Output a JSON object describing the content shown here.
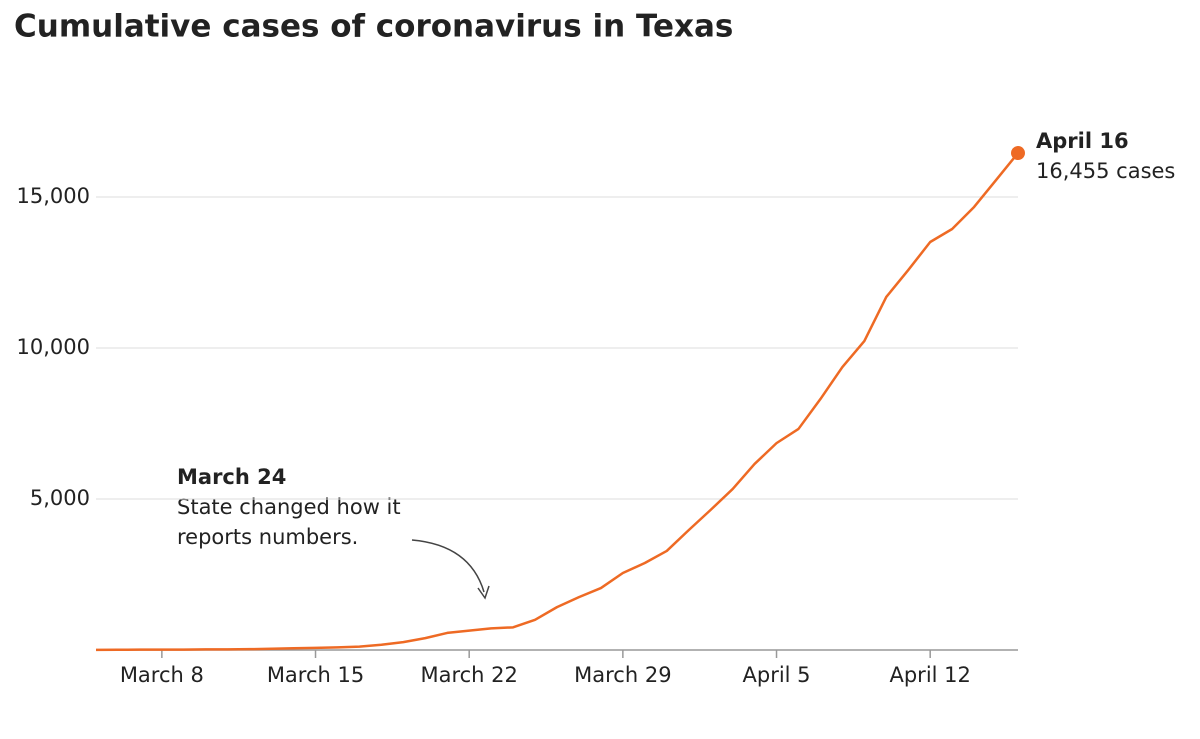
{
  "chart_data": {
    "type": "line",
    "title": "Cumulative cases of coronavirus in Texas",
    "x": [
      5,
      6,
      7,
      8,
      9,
      10,
      11,
      12,
      13,
      14,
      15,
      16,
      17,
      18,
      19,
      20,
      21,
      22,
      23,
      24,
      25,
      26,
      27,
      28,
      29,
      30,
      31,
      32,
      33,
      34,
      35,
      36,
      37,
      38,
      39,
      40,
      41,
      42,
      43,
      44,
      45,
      46,
      47
    ],
    "series": [
      {
        "name": "Cumulative cases",
        "color": "#ee6a24",
        "values": [
          5,
          8,
          11,
          13,
          13,
          20,
          21,
          27,
          43,
          57,
          72,
          85,
          110,
          173,
          260,
          394,
          566,
          643,
          715,
          750,
          1000,
          1420,
          1750,
          2050,
          2550,
          2880,
          3280,
          3970,
          4640,
          5330,
          6160,
          6850,
          7320,
          8310,
          9370,
          10230,
          11690,
          12580,
          13510,
          13940,
          14670,
          15560,
          16455
        ]
      }
    ],
    "xlim": [
      5,
      47
    ],
    "xticks": [
      {
        "value": 8,
        "label": "March 8"
      },
      {
        "value": 15,
        "label": "March 15"
      },
      {
        "value": 22,
        "label": "March 22"
      },
      {
        "value": 29,
        "label": "March 29"
      },
      {
        "value": 36,
        "label": "April 5"
      },
      {
        "value": 43,
        "label": "April 12"
      }
    ],
    "ylim": [
      0,
      17000
    ],
    "yticks": [
      {
        "value": 5000,
        "label": "5,000"
      },
      {
        "value": 10000,
        "label": "10,000"
      },
      {
        "value": 15000,
        "label": "15,000"
      }
    ],
    "grid": true,
    "end_label": {
      "title": "April 16",
      "text": "16,455 cases"
    },
    "annotation": {
      "title": "March 24",
      "lines": [
        "State changed how it",
        "reports numbers."
      ]
    }
  }
}
